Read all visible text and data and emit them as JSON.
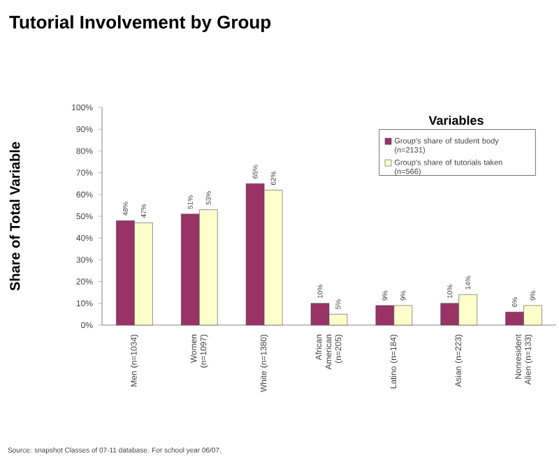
{
  "chart_data": {
    "type": "bar",
    "title": "Tutorial Involvement by Group",
    "categories": [
      "Men (n=1034)",
      "Women (n=1097)",
      "White (n=1380)",
      "African American (n=205)",
      "Latino (n=184)",
      "Asian (n=223)",
      "Nonresident Alien (n=133)"
    ],
    "series": [
      {
        "name": "Group's share of student body (n=2131)",
        "color": "#993366",
        "values": [
          48,
          51,
          65,
          10,
          9,
          10,
          6
        ],
        "value_labels": [
          "48%",
          "51%",
          "65%",
          "10%",
          "9%",
          "10%",
          "6%"
        ]
      },
      {
        "name": "Group's share of tutorials taken (n=566)",
        "color": "#ffffcc",
        "values": [
          47,
          53,
          62,
          5,
          9,
          14,
          9
        ],
        "value_labels": [
          "47%",
          "53%",
          "62%",
          "5%",
          "9%",
          "14%",
          "9%"
        ]
      }
    ],
    "ylabel": "Share of Total Variable",
    "legend_title": "Variables",
    "legend": "top right",
    "grid": false,
    "ylim": [
      0,
      100
    ],
    "yticks": [
      {
        "value": 0,
        "label": "0%"
      },
      {
        "value": 10,
        "label": "10%"
      },
      {
        "value": 20,
        "label": "20%"
      },
      {
        "value": 30,
        "label": "30%"
      },
      {
        "value": 40,
        "label": "40%"
      },
      {
        "value": 50,
        "label": "50%"
      },
      {
        "value": 60,
        "label": "60%"
      },
      {
        "value": 70,
        "label": "70%"
      },
      {
        "value": 80,
        "label": "80%"
      },
      {
        "value": 90,
        "label": "90%"
      },
      {
        "value": 100,
        "label": "100%"
      }
    ],
    "annotations": [
      "Source: snapshot Classes of 07-11 database.  For school year 06/07."
    ]
  }
}
